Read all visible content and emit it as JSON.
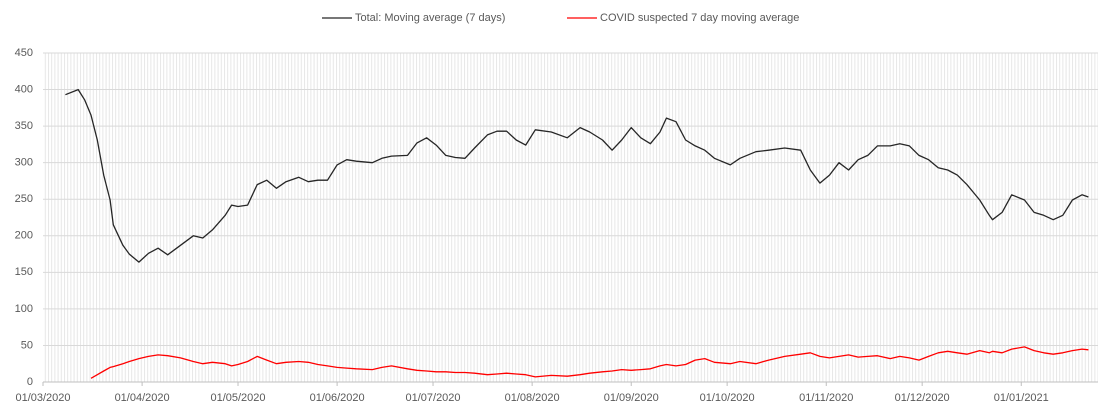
{
  "chart_data": {
    "type": "line",
    "x": [
      "08/03/2020",
      "12/03/2020",
      "14/03/2020",
      "16/03/2020",
      "18/03/2020",
      "20/03/2020",
      "22/03/2020",
      "23/03/2020",
      "26/03/2020",
      "28/03/2020",
      "31/03/2020",
      "03/04/2020",
      "06/04/2020",
      "09/04/2020",
      "13/04/2020",
      "17/04/2020",
      "20/04/2020",
      "23/04/2020",
      "27/04/2020",
      "29/04/2020",
      "01/05/2020",
      "04/05/2020",
      "07/05/2020",
      "10/05/2020",
      "13/05/2020",
      "16/05/2020",
      "20/05/2020",
      "23/05/2020",
      "26/05/2020",
      "29/05/2020",
      "01/06/2020",
      "04/06/2020",
      "07/06/2020",
      "12/06/2020",
      "15/06/2020",
      "18/06/2020",
      "23/06/2020",
      "26/06/2020",
      "29/06/2020",
      "02/07/2020",
      "05/07/2020",
      "08/07/2020",
      "11/07/2020",
      "14/07/2020",
      "18/07/2020",
      "21/07/2020",
      "24/07/2020",
      "27/07/2020",
      "30/07/2020",
      "02/08/2020",
      "07/08/2020",
      "12/08/2020",
      "16/08/2020",
      "19/08/2020",
      "23/08/2020",
      "26/08/2020",
      "29/08/2020",
      "01/09/2020",
      "04/09/2020",
      "07/09/2020",
      "10/09/2020",
      "12/09/2020",
      "15/09/2020",
      "18/09/2020",
      "21/09/2020",
      "24/09/2020",
      "27/09/2020",
      "02/10/2020",
      "05/10/2020",
      "10/10/2020",
      "14/10/2020",
      "19/10/2020",
      "24/10/2020",
      "27/10/2020",
      "30/10/2020",
      "02/11/2020",
      "05/11/2020",
      "08/11/2020",
      "11/11/2020",
      "14/11/2020",
      "17/11/2020",
      "21/11/2020",
      "24/11/2020",
      "27/11/2020",
      "30/11/2020",
      "03/12/2020",
      "06/12/2020",
      "09/12/2020",
      "12/12/2020",
      "15/12/2020",
      "19/12/2020",
      "22/12/2020",
      "23/12/2020",
      "26/12/2020",
      "29/12/2020",
      "02/01/2021",
      "05/01/2021",
      "08/01/2021",
      "11/01/2021",
      "14/01/2021",
      "17/01/2021",
      "20/01/2021",
      "22/01/2021"
    ],
    "series": [
      {
        "name": "Total: Moving average (7 days)",
        "color": "#262626",
        "values": [
          393,
          400,
          386,
          365,
          331,
          283,
          249,
          215,
          187,
          175,
          164,
          176,
          183,
          174,
          187,
          200,
          197,
          208,
          228,
          242,
          240,
          242,
          270,
          276,
          265,
          274,
          280,
          274,
          276,
          276,
          297,
          304,
          302,
          300,
          306,
          309,
          310,
          327,
          334,
          324,
          310,
          307,
          306,
          320,
          338,
          343,
          343,
          331,
          324,
          345,
          342,
          334,
          348,
          342,
          331,
          317,
          331,
          348,
          334,
          326,
          342,
          361,
          356,
          331,
          323,
          317,
          306,
          297,
          306,
          315,
          317,
          320,
          317,
          290,
          272,
          283,
          300,
          290,
          304,
          310,
          323,
          323,
          326,
          323,
          310,
          304,
          293,
          290,
          283,
          270,
          249,
          228,
          222,
          232,
          256,
          249,
          232,
          228,
          222,
          228,
          249,
          256,
          253
        ]
      },
      {
        "name": "COVID suspected 7 day moving average",
        "color": "#ff0000",
        "values": [
          null,
          null,
          null,
          5,
          10,
          15,
          20,
          21,
          25,
          28,
          32,
          35,
          37,
          36,
          33,
          28,
          25,
          27,
          25,
          22,
          24,
          28,
          35,
          30,
          25,
          27,
          28,
          27,
          24,
          22,
          20,
          19,
          18,
          17,
          20,
          22,
          18,
          16,
          15,
          14,
          14,
          13,
          13,
          12,
          10,
          11,
          12,
          11,
          10,
          7,
          9,
          8,
          10,
          12,
          14,
          15,
          17,
          16,
          17,
          18,
          22,
          24,
          22,
          24,
          30,
          32,
          27,
          25,
          28,
          25,
          30,
          35,
          38,
          40,
          35,
          33,
          35,
          37,
          34,
          35,
          36,
          32,
          35,
          33,
          30,
          35,
          40,
          42,
          40,
          38,
          43,
          40,
          42,
          40,
          45,
          48,
          43,
          40,
          38,
          40,
          43,
          45,
          44
        ]
      }
    ],
    "xlim": [
      "01/03/2020",
      "25/01/2021"
    ],
    "xticks": [
      "01/03/2020",
      "01/04/2020",
      "01/05/2020",
      "01/06/2020",
      "01/07/2020",
      "01/08/2020",
      "01/09/2020",
      "01/10/2020",
      "01/11/2020",
      "01/12/2020",
      "01/01/2021"
    ],
    "ylim": [
      0,
      450
    ],
    "yticks": [
      0,
      50,
      100,
      150,
      200,
      250,
      300,
      350,
      400,
      450
    ],
    "grid": true,
    "legend": "top"
  }
}
